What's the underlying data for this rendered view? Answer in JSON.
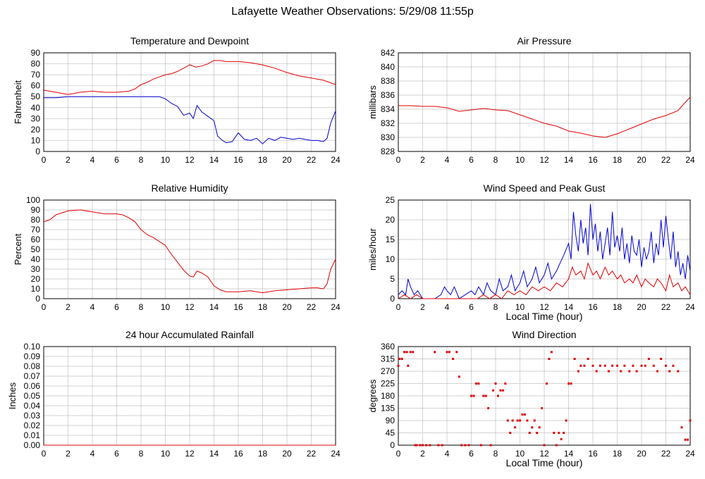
{
  "page": {
    "title": "Lafayette Weather Observations: 5/29/08 11:55p"
  },
  "colors": {
    "red": "#e00000",
    "blue": "#0000cc",
    "grid": "#888888",
    "frame": "#000000"
  },
  "chart_data": [
    {
      "id": "temp",
      "type": "line",
      "title": "Temperature and Dewpoint",
      "xlabel": "",
      "ylabel": "Fahrenheit",
      "xlim": [
        0,
        24
      ],
      "ylim": [
        0,
        90
      ],
      "xticks": [
        0,
        2,
        4,
        6,
        8,
        10,
        12,
        14,
        16,
        18,
        20,
        22,
        24
      ],
      "yticks": [
        0,
        10,
        20,
        30,
        40,
        50,
        60,
        70,
        80,
        90
      ],
      "series": [
        {
          "color": "#e00000",
          "x": [
            0,
            1,
            2,
            3,
            4,
            5,
            6,
            7,
            7.5,
            8,
            8.5,
            9,
            9.5,
            10,
            10.5,
            11,
            11.5,
            12,
            12.5,
            13,
            13.5,
            14,
            14.5,
            15,
            16,
            17,
            18,
            19,
            20,
            21,
            22,
            23,
            24
          ],
          "y": [
            56,
            54,
            52,
            54,
            55,
            54,
            54,
            55,
            57,
            61,
            63,
            66,
            68,
            70,
            71,
            73,
            76,
            79,
            77,
            78,
            80,
            83,
            83,
            82,
            82,
            81,
            79,
            76,
            72,
            69,
            67,
            65,
            61
          ]
        },
        {
          "color": "#0000cc",
          "x": [
            0,
            1,
            2,
            3,
            4,
            5,
            6,
            7,
            8,
            9,
            9.5,
            10,
            10.5,
            11,
            11.5,
            12,
            12.3,
            12.6,
            13,
            13.5,
            14,
            14.3,
            14.7,
            15,
            15.5,
            16,
            16.5,
            17,
            17.5,
            18,
            18.5,
            19,
            19.5,
            20,
            20.5,
            21,
            21.5,
            22,
            22.5,
            23,
            23.3,
            23.6,
            24
          ],
          "y": [
            49,
            49,
            50,
            50,
            50,
            50,
            50,
            50,
            50,
            50,
            50,
            48,
            44,
            41,
            33,
            35,
            30,
            42,
            36,
            32,
            28,
            14,
            10,
            8,
            9,
            17,
            11,
            10,
            12,
            7,
            12,
            10,
            13,
            12,
            11,
            12,
            11,
            10,
            10,
            9,
            12,
            26,
            37
          ]
        }
      ]
    },
    {
      "id": "pressure",
      "type": "line",
      "title": "Air Pressure",
      "xlabel": "",
      "ylabel": "millibars",
      "xlim": [
        0,
        24
      ],
      "ylim": [
        828,
        842
      ],
      "xticks": [
        0,
        2,
        4,
        6,
        8,
        10,
        12,
        14,
        16,
        18,
        20,
        22,
        24
      ],
      "yticks": [
        828,
        830,
        832,
        834,
        836,
        838,
        840,
        842
      ],
      "series": [
        {
          "color": "#e00000",
          "x": [
            0,
            1,
            2,
            3,
            4,
            5,
            6,
            7,
            8,
            9,
            10,
            11,
            12,
            13,
            14,
            15,
            16,
            17,
            18,
            19,
            20,
            21,
            22,
            23,
            23.5,
            24
          ],
          "y": [
            834.5,
            834.5,
            834.4,
            834.4,
            834.2,
            833.7,
            833.9,
            834.1,
            833.9,
            833.8,
            833.2,
            832.6,
            832.0,
            831.6,
            830.9,
            830.6,
            830.2,
            830.0,
            830.5,
            831.2,
            831.9,
            832.6,
            833.1,
            833.8,
            834.8,
            835.7
          ]
        }
      ]
    },
    {
      "id": "humidity",
      "type": "line",
      "title": "Relative Humidity",
      "xlabel": "",
      "ylabel": "Percent",
      "xlim": [
        0,
        24
      ],
      "ylim": [
        0,
        100
      ],
      "xticks": [
        0,
        2,
        4,
        6,
        8,
        10,
        12,
        14,
        16,
        18,
        20,
        22,
        24
      ],
      "yticks": [
        0,
        10,
        20,
        30,
        40,
        50,
        60,
        70,
        80,
        90,
        100
      ],
      "series": [
        {
          "color": "#e00000",
          "x": [
            0,
            0.5,
            1,
            2,
            3,
            4,
            5,
            6,
            6.5,
            7,
            7.5,
            8,
            8.5,
            9,
            9.5,
            10,
            10.5,
            11,
            11.5,
            12,
            12.3,
            12.6,
            13,
            13.5,
            14,
            14.5,
            15,
            16,
            17,
            18,
            19,
            20,
            21,
            22,
            22.5,
            23,
            23.3,
            23.6,
            24
          ],
          "y": [
            78,
            80,
            85,
            89,
            90,
            88,
            86,
            86,
            85,
            82,
            78,
            70,
            65,
            62,
            58,
            54,
            45,
            37,
            29,
            23,
            22,
            28,
            26,
            22,
            13,
            9,
            7,
            7,
            8,
            6,
            8,
            9,
            10,
            11,
            11,
            10,
            15,
            30,
            40
          ]
        }
      ]
    },
    {
      "id": "wind",
      "type": "line",
      "title": "Wind Speed and Peak Gust",
      "xlabel": "Local Time (hour)",
      "ylabel": "miles/hour",
      "xlim": [
        0,
        24
      ],
      "ylim": [
        0,
        25
      ],
      "xticks": [
        0,
        2,
        4,
        6,
        8,
        10,
        12,
        14,
        16,
        18,
        20,
        22,
        24
      ],
      "yticks": [
        0,
        5,
        10,
        15,
        20,
        25
      ],
      "series": [
        {
          "color": "#0000cc",
          "x": [
            0,
            0.3,
            0.6,
            0.8,
            1,
            1.3,
            1.6,
            2,
            3,
            3.5,
            3.8,
            4,
            4.3,
            4.6,
            5,
            5.5,
            6,
            6.3,
            6.6,
            7,
            7.3,
            7.6,
            8,
            8.3,
            8.6,
            9,
            9.3,
            9.6,
            10,
            10.3,
            10.6,
            11,
            11.3,
            11.6,
            12,
            12.3,
            12.6,
            13,
            13.3,
            13.6,
            14,
            14.2,
            14.4,
            14.6,
            14.8,
            15,
            15.2,
            15.4,
            15.6,
            15.8,
            16,
            16.2,
            16.4,
            16.6,
            16.8,
            17,
            17.2,
            17.4,
            17.6,
            17.8,
            18,
            18.2,
            18.4,
            18.6,
            18.8,
            19,
            19.2,
            19.4,
            19.6,
            19.8,
            20,
            20.2,
            20.4,
            20.6,
            20.8,
            21,
            21.2,
            21.4,
            21.6,
            21.8,
            22,
            22.2,
            22.4,
            22.6,
            22.8,
            23,
            23.2,
            23.4,
            23.6,
            23.8,
            24
          ],
          "y": [
            1,
            2,
            1,
            5,
            3,
            1,
            2,
            0,
            0,
            1,
            3,
            2,
            1,
            3,
            0,
            1,
            2,
            1,
            3,
            1,
            4,
            2,
            1,
            5,
            2,
            3,
            6,
            2,
            4,
            7,
            3,
            5,
            8,
            4,
            6,
            9,
            5,
            7,
            9,
            11,
            14,
            10,
            22,
            16,
            12,
            20,
            14,
            18,
            11,
            24,
            15,
            19,
            12,
            17,
            10,
            14,
            18,
            11,
            22,
            13,
            16,
            12,
            18,
            10,
            14,
            9,
            16,
            12,
            11,
            15,
            8,
            13,
            10,
            12,
            17,
            9,
            14,
            11,
            20,
            13,
            21,
            15,
            10,
            17,
            8,
            12,
            6,
            9,
            5,
            11,
            7
          ]
        },
        {
          "color": "#e00000",
          "x": [
            0,
            0.5,
            1,
            1.5,
            2,
            3,
            4,
            5,
            6,
            6.5,
            7,
            7.5,
            8,
            8.5,
            9,
            9.5,
            10,
            10.5,
            11,
            11.5,
            12,
            12.5,
            13,
            13.5,
            14,
            14.3,
            14.6,
            15,
            15.3,
            15.6,
            16,
            16.3,
            16.6,
            17,
            17.3,
            17.6,
            18,
            18.3,
            18.6,
            19,
            19.3,
            19.6,
            20,
            20.3,
            20.6,
            21,
            21.3,
            21.6,
            22,
            22.3,
            22.6,
            23,
            23.3,
            23.6,
            24
          ],
          "y": [
            0,
            1,
            0,
            1,
            0,
            0,
            0,
            0,
            0,
            0,
            1,
            0,
            1,
            0,
            2,
            1,
            2,
            1,
            3,
            2,
            3,
            2,
            4,
            3,
            5,
            8,
            6,
            7,
            5,
            9,
            6,
            7,
            5,
            8,
            6,
            7,
            5,
            6,
            4,
            5,
            4,
            6,
            3,
            5,
            4,
            3,
            5,
            4,
            2,
            6,
            3,
            4,
            2,
            3,
            1
          ]
        }
      ]
    },
    {
      "id": "rain",
      "type": "line",
      "title": "24 hour Accumulated Rainfall",
      "xlabel": "",
      "ylabel": "Inches",
      "xlim": [
        0,
        24
      ],
      "ylim": [
        0,
        0.1
      ],
      "xticks": [
        0,
        2,
        4,
        6,
        8,
        10,
        12,
        14,
        16,
        18,
        20,
        22,
        24
      ],
      "yticks": [
        "0.00",
        "0.01",
        "0.02",
        "0.03",
        "0.04",
        "0.05",
        "0.06",
        "0.07",
        "0.08",
        "0.09",
        "0.10"
      ],
      "series": [
        {
          "color": "#e00000",
          "x": [
            0,
            24
          ],
          "y": [
            0,
            0
          ]
        }
      ]
    },
    {
      "id": "direction",
      "type": "scatter",
      "title": "Wind Direction",
      "xlabel": "Local Time (hour)",
      "ylabel": "degrees",
      "xlim": [
        0,
        24
      ],
      "ylim": [
        0,
        360
      ],
      "xticks": [
        0,
        2,
        4,
        6,
        8,
        10,
        12,
        14,
        16,
        18,
        20,
        22,
        24
      ],
      "yticks": [
        0,
        45,
        90,
        135,
        180,
        225,
        270,
        315,
        360
      ],
      "series": [
        {
          "color": "#e00000",
          "x": [
            0,
            0.1,
            0.3,
            0.5,
            0.7,
            0.8,
            1,
            1.2,
            1.4,
            1.5,
            1.8,
            2,
            2.3,
            2.6,
            3,
            3.3,
            3.6,
            4,
            4.2,
            4.5,
            4.8,
            5,
            5.2,
            5.5,
            5.8,
            6,
            6.2,
            6.4,
            6.6,
            6.8,
            7,
            7.2,
            7.4,
            7.6,
            7.8,
            8,
            8.2,
            8.4,
            8.6,
            8.8,
            9,
            9.2,
            9.4,
            9.6,
            9.8,
            10,
            10.2,
            10.4,
            10.6,
            10.8,
            11,
            11.2,
            11.4,
            11.6,
            11.8,
            12,
            12.2,
            12.4,
            12.6,
            12.8,
            13,
            13.2,
            13.4,
            13.6,
            13.8,
            14,
            14.2,
            14.5,
            14.8,
            15,
            15.3,
            15.6,
            16,
            16.3,
            16.6,
            17,
            17.3,
            17.6,
            18,
            18.3,
            18.6,
            19,
            19.3,
            19.6,
            20,
            20.3,
            20.6,
            21,
            21.3,
            21.6,
            22,
            22.3,
            22.6,
            23,
            23.3,
            23.6,
            23.8,
            24
          ],
          "y": [
            290,
            315,
            315,
            340,
            340,
            290,
            340,
            340,
            0,
            0,
            0,
            0,
            0,
            0,
            340,
            0,
            0,
            340,
            340,
            315,
            340,
            250,
            0,
            0,
            0,
            180,
            180,
            225,
            225,
            0,
            180,
            180,
            135,
            0,
            200,
            225,
            180,
            200,
            200,
            225,
            90,
            45,
            90,
            65,
            90,
            90,
            112,
            112,
            90,
            45,
            65,
            90,
            45,
            65,
            135,
            0,
            225,
            315,
            340,
            45,
            0,
            45,
            22,
            45,
            90,
            225,
            225,
            315,
            270,
            290,
            290,
            315,
            290,
            270,
            290,
            290,
            270,
            290,
            290,
            270,
            290,
            270,
            290,
            270,
            290,
            290,
            315,
            290,
            270,
            315,
            290,
            270,
            290,
            270,
            65,
            20,
            20,
            90
          ]
        }
      ]
    }
  ]
}
